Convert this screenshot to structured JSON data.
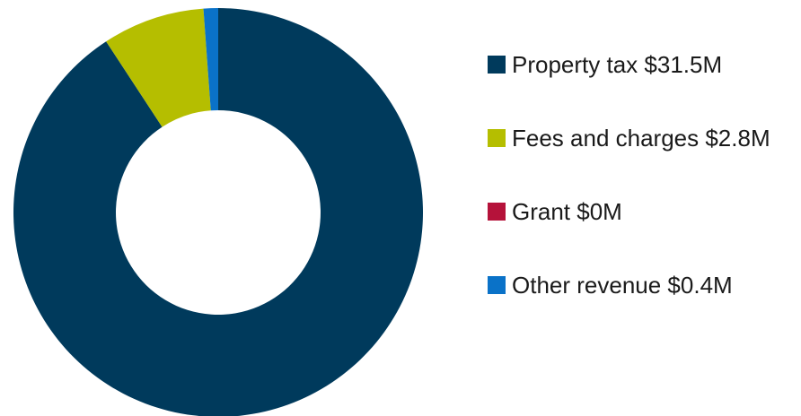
{
  "chart_data": {
    "type": "pie",
    "variant": "donut",
    "categories": [
      "Property tax",
      "Fees and charges",
      "Grant",
      "Other revenue"
    ],
    "values": [
      31.5,
      2.8,
      0,
      0.4
    ],
    "unit": "$M",
    "colors": [
      "#003a5c",
      "#b5be00",
      "#b5123a",
      "#0a72c8"
    ],
    "legend_labels": [
      "Property tax $31.5M",
      "Fees and charges $2.8M",
      "Grant $0M",
      "Other revenue $0.4M"
    ],
    "legend_position": "right",
    "start_angle": "top",
    "direction": "clockwise",
    "title": ""
  }
}
